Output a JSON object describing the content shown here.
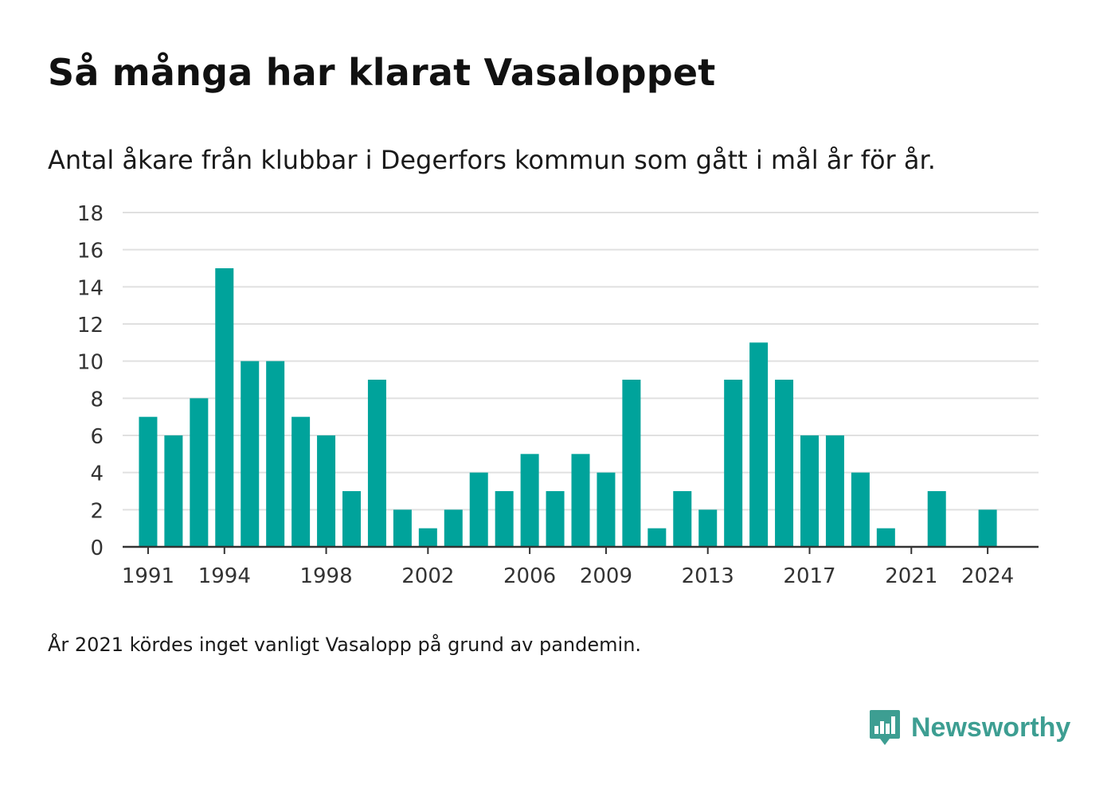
{
  "header": {
    "title": "Så många har klarat Vasaloppet",
    "subtitle": "Antal åkare från klubbar i Degerfors kommun som gått i mål år för år."
  },
  "footnote": "År 2021 kördes inget vanligt Vasalopp på grund av pandemin.",
  "brand": {
    "name": "Newsworthy",
    "icon": "bar-chart-speech-bubble-icon",
    "color": "#3d9e92"
  },
  "colors": {
    "bar": "#00a39b",
    "grid": "#e0e0e0",
    "axis": "#333333"
  },
  "chart_data": {
    "type": "bar",
    "x": [
      1991,
      1992,
      1993,
      1994,
      1995,
      1996,
      1997,
      1998,
      1999,
      2000,
      2001,
      2002,
      2003,
      2004,
      2005,
      2006,
      2007,
      2008,
      2009,
      2010,
      2011,
      2012,
      2013,
      2014,
      2015,
      2016,
      2017,
      2018,
      2019,
      2020,
      2021,
      2022,
      2023,
      2024
    ],
    "values": [
      7,
      6,
      8,
      15,
      10,
      10,
      7,
      6,
      3,
      9,
      2,
      1,
      2,
      4,
      3,
      5,
      3,
      5,
      4,
      9,
      1,
      3,
      2,
      9,
      11,
      9,
      6,
      6,
      4,
      1,
      0,
      3,
      0,
      2
    ],
    "x_ticks": [
      1991,
      1994,
      1998,
      2002,
      2006,
      2009,
      2013,
      2017,
      2021,
      2024
    ],
    "y_ticks": [
      0,
      2,
      4,
      6,
      8,
      10,
      12,
      14,
      16,
      18
    ],
    "ylim": [
      0,
      18
    ],
    "xlim": [
      1990,
      2026
    ],
    "grid": true,
    "legend": "none"
  }
}
